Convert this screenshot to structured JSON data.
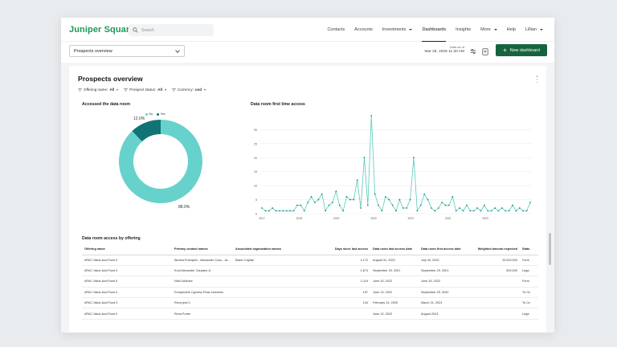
{
  "app": {
    "logo": "Juniper Square"
  },
  "search": {
    "placeholder": "Search"
  },
  "nav": {
    "items": [
      {
        "label": "Contacts",
        "caret": false,
        "active": false
      },
      {
        "label": "Accounts",
        "caret": false,
        "active": false
      },
      {
        "label": "Investments",
        "caret": true,
        "active": false
      },
      {
        "label": "Dashboards",
        "caret": false,
        "active": true
      },
      {
        "label": "Insights",
        "caret": false,
        "active": false
      },
      {
        "label": "More",
        "caret": true,
        "active": false
      },
      {
        "label": "Help",
        "caret": false,
        "active": false
      },
      {
        "label": "Lillian",
        "caret": true,
        "active": false
      }
    ]
  },
  "subbar": {
    "dashboard_select": "Prospects overview",
    "data_as_of_label": "Data as of",
    "data_as_of_value": "Mar 25, 2025 11:30 AM",
    "new_dashboard": "New dashboard"
  },
  "card": {
    "title": "Prospects overview",
    "filters": [
      {
        "label": "Offering name:",
        "value": "All"
      },
      {
        "label": "Prospect status:",
        "value": "All"
      },
      {
        "label": "Currency:",
        "value": "usd"
      }
    ]
  },
  "donut": {
    "title": "Accessed the data room",
    "legend": [
      {
        "label": "No",
        "color": "#67d1cc"
      },
      {
        "label": "Yes",
        "color": "#127377"
      }
    ],
    "slices": [
      {
        "label": "No",
        "value": 88.0,
        "text": "88.0%",
        "color": "#67d1cc"
      },
      {
        "label": "Yes",
        "value": 12.0,
        "text": "12.0%",
        "color": "#127377"
      }
    ]
  },
  "chart_data": {
    "type": "line",
    "title": "Data room first time access",
    "xlabel": "",
    "ylabel": "",
    "ylim": [
      0,
      35
    ],
    "yticks": [
      0,
      5,
      10,
      15,
      20,
      25,
      30
    ],
    "xticks": [
      "2017",
      "2018",
      "2019",
      "2020",
      "2021",
      "2022",
      "2023"
    ],
    "grid": true,
    "color": "#58c9bd",
    "values": [
      2,
      1,
      1,
      2,
      1,
      1,
      1,
      1,
      1,
      1,
      3,
      3,
      1,
      4,
      6,
      4,
      5,
      7,
      1,
      3,
      4,
      8,
      3,
      1,
      6,
      5,
      5,
      12,
      2,
      20,
      3,
      35,
      7,
      3,
      1,
      6,
      5,
      3,
      1,
      5,
      2,
      2,
      5,
      20,
      1,
      3,
      7,
      5,
      2,
      1,
      2,
      4,
      3,
      3,
      6,
      1,
      2,
      1,
      3,
      1,
      1,
      2,
      1,
      3,
      1,
      1,
      2,
      1,
      2,
      1,
      1,
      3,
      1,
      2,
      1,
      1,
      4
    ]
  },
  "table": {
    "title": "Data room access by offering",
    "columns": [
      "Offering name",
      "Primary contact names",
      "Associated organization names",
      "Days since last access",
      "Data room last access date",
      "Data room first access date",
      "Weighted amount expected",
      "Statu"
    ],
    "rows": [
      [
        "APAC Value-Add Fund II",
        "Almeta Frampton , Alexander Coos , Ja...",
        "Baker Capital",
        "1,172",
        "August 31, 2023",
        "July 30, 2020",
        "10,000,000",
        "Form"
      ],
      [
        "APAC Value-Add Fund II",
        "Kodi Alexander Carpatro Jr",
        "",
        "1,674",
        "September 29, 2021",
        "September 29, 2021",
        "500,000",
        "Lega"
      ],
      [
        "APAC Value-Add Fund II",
        "Nick DuMoire",
        "",
        "1,119",
        "June 15, 2022",
        "June 15, 2022",
        "",
        "Form"
      ],
      [
        "APAC Value-Add Fund II",
        "Prospective Cypress Peak Investors",
        "",
        "197",
        "June 13, 2022",
        "September 25, 2020",
        "",
        "To Ce"
      ],
      [
        "APAC Value-Add Fund II",
        "Reva jewl 2",
        "",
        "144",
        "February 14, 2025",
        "March 21, 2023",
        "",
        "To Ce"
      ],
      [
        "APAC Value-Add Fund II",
        "Reva Porter",
        "",
        "",
        "June 13, 2022",
        "August 2023",
        "",
        "Lega"
      ]
    ]
  }
}
